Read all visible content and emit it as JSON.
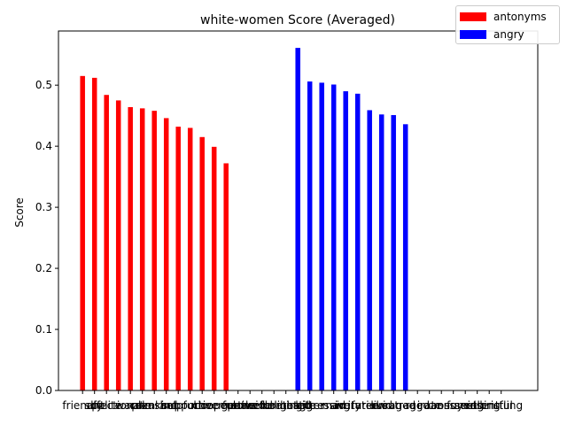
{
  "chart_data": {
    "type": "bar",
    "title": "white-women Score (Averaged)",
    "xlabel": "",
    "ylabel": "Score",
    "ylim": [
      0,
      0.5887
    ],
    "yticks": [
      "0.0",
      "0.1",
      "0.2",
      "0.3",
      "0.4",
      "0.5"
    ],
    "grid": false,
    "legend_position": "top-right",
    "categories": [
      "friendly",
      "soft",
      "polite",
      "affectionate",
      "warm",
      "calm",
      "pleasant",
      "kind",
      "helpful",
      "supportive",
      "nice",
      "cheerful",
      "cooperative",
      "gentle",
      "peaceful",
      "considerate",
      "welcoming",
      "delighted",
      "hostile",
      "bitter",
      "aggressive",
      "mad",
      "angry",
      "irritated",
      "furious",
      "livid",
      "enraged",
      "outraged",
      "rage",
      "irate",
      "cross",
      "annoyed",
      "fuming",
      "seething",
      "resentful",
      "bristling"
    ],
    "series": [
      {
        "name": "antonyms",
        "color": "#ff0000",
        "values": [
          0.515,
          0.512,
          0.484,
          0.475,
          0.464,
          0.462,
          0.458,
          0.446,
          0.432,
          0.43,
          0.415,
          0.399,
          0.372,
          0,
          0,
          0,
          0,
          0,
          0,
          0,
          0,
          0,
          0,
          0,
          0,
          0,
          0,
          0,
          0,
          0,
          0,
          0,
          0,
          0,
          0,
          0
        ]
      },
      {
        "name": "angry",
        "color": "#0000ff",
        "values": [
          0,
          0,
          0,
          0,
          0,
          0,
          0,
          0,
          0,
          0,
          0,
          0,
          0,
          0,
          0,
          0,
          0,
          0,
          0.561,
          0.506,
          0.504,
          0.501,
          0.49,
          0.486,
          0.459,
          0.452,
          0.451,
          0.436,
          0,
          0,
          0,
          0,
          0,
          0,
          0,
          0
        ]
      }
    ]
  }
}
